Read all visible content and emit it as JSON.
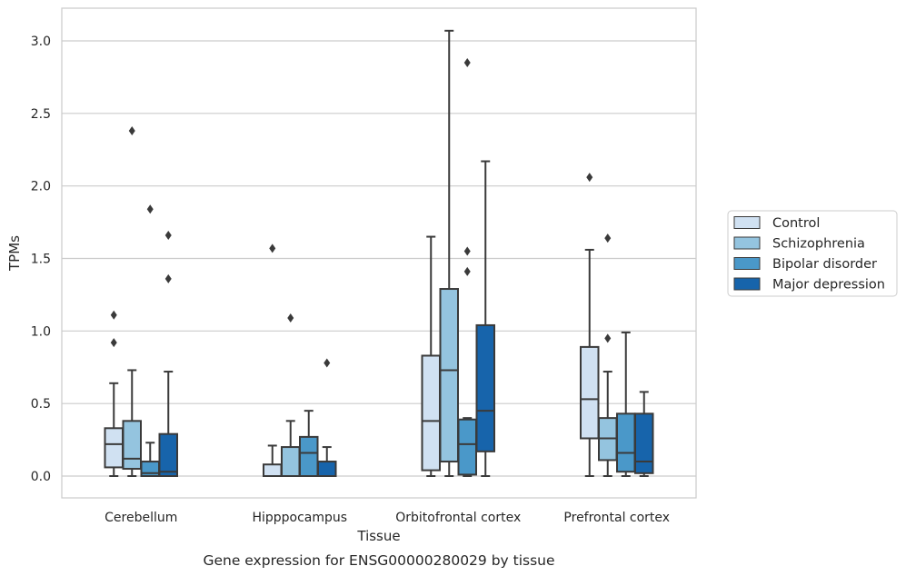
{
  "chart_data": {
    "type": "box",
    "caption": "Gene expression for ENSG00000280029 by tissue",
    "xlabel": "Tissue",
    "ylabel": "TPMs",
    "ylim": [
      -0.15,
      3.23
    ],
    "yticks": [
      0.0,
      0.5,
      1.0,
      1.5,
      2.0,
      2.5,
      3.0
    ],
    "ytick_labels": [
      "0.0",
      "0.5",
      "1.0",
      "1.5",
      "2.0",
      "2.5",
      "3.0"
    ],
    "grid": "horizontal",
    "legend_position": "right",
    "categories": [
      "Cerebellum",
      "Hipppocampus",
      "Orbitofrontal cortex",
      "Prefrontal cortex"
    ],
    "series": [
      {
        "name": "Control",
        "color": "#d0e1f2",
        "boxes": [
          {
            "whislo": 0.0,
            "q1": 0.06,
            "med": 0.22,
            "q3": 0.33,
            "whishi": 0.64,
            "fliers": [
              0.92,
              1.11
            ]
          },
          {
            "whislo": 0.0,
            "q1": 0.0,
            "med": 0.0,
            "q3": 0.08,
            "whishi": 0.21,
            "fliers": [
              1.57
            ]
          },
          {
            "whislo": 0.0,
            "q1": 0.04,
            "med": 0.38,
            "q3": 0.83,
            "whishi": 1.65,
            "fliers": []
          },
          {
            "whislo": 0.0,
            "q1": 0.26,
            "med": 0.53,
            "q3": 0.89,
            "whishi": 1.56,
            "fliers": [
              2.06
            ]
          }
        ]
      },
      {
        "name": "Schizophrenia",
        "color": "#94c4df",
        "boxes": [
          {
            "whislo": 0.0,
            "q1": 0.05,
            "med": 0.12,
            "q3": 0.38,
            "whishi": 0.73,
            "fliers": [
              2.38
            ]
          },
          {
            "whislo": 0.0,
            "q1": 0.0,
            "med": 0.0,
            "q3": 0.2,
            "whishi": 0.38,
            "fliers": [
              1.09
            ]
          },
          {
            "whislo": 0.0,
            "q1": 0.1,
            "med": 0.73,
            "q3": 1.29,
            "whishi": 3.07,
            "fliers": []
          },
          {
            "whislo": 0.0,
            "q1": 0.11,
            "med": 0.26,
            "q3": 0.4,
            "whishi": 0.72,
            "fliers": [
              0.95,
              1.64
            ]
          }
        ]
      },
      {
        "name": "Bipolar disorder",
        "color": "#4a98c9",
        "boxes": [
          {
            "whislo": 0.0,
            "q1": 0.0,
            "med": 0.02,
            "q3": 0.1,
            "whishi": 0.23,
            "fliers": [
              1.84
            ]
          },
          {
            "whislo": 0.0,
            "q1": 0.0,
            "med": 0.16,
            "q3": 0.27,
            "whishi": 0.45,
            "fliers": []
          },
          {
            "whislo": 0.0,
            "q1": 0.01,
            "med": 0.22,
            "q3": 0.39,
            "whishi": 0.4,
            "fliers": [
              1.41,
              1.55,
              2.85
            ]
          },
          {
            "whislo": 0.0,
            "q1": 0.03,
            "med": 0.16,
            "q3": 0.43,
            "whishi": 0.99,
            "fliers": []
          }
        ]
      },
      {
        "name": "Major depression",
        "color": "#1764ab",
        "boxes": [
          {
            "whislo": 0.0,
            "q1": 0.0,
            "med": 0.03,
            "q3": 0.29,
            "whishi": 0.72,
            "fliers": [
              1.36,
              1.66
            ]
          },
          {
            "whislo": 0.0,
            "q1": 0.0,
            "med": 0.0,
            "q3": 0.1,
            "whishi": 0.2,
            "fliers": [
              0.78
            ]
          },
          {
            "whislo": 0.0,
            "q1": 0.17,
            "med": 0.45,
            "q3": 1.04,
            "whishi": 2.17,
            "fliers": []
          },
          {
            "whislo": 0.0,
            "q1": 0.02,
            "med": 0.1,
            "q3": 0.43,
            "whishi": 0.58,
            "fliers": []
          }
        ]
      }
    ]
  }
}
